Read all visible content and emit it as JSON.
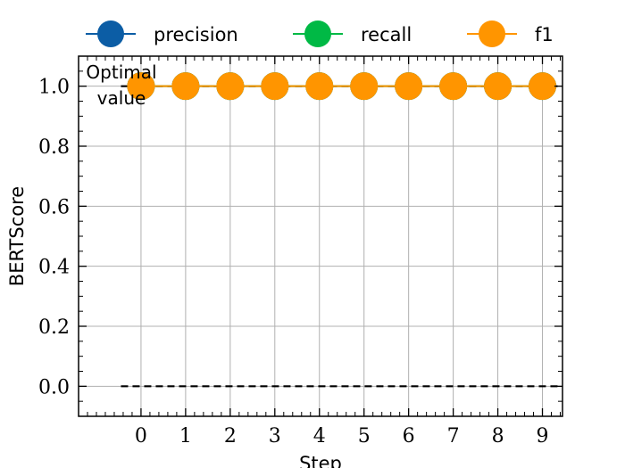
{
  "chart_data": {
    "type": "line",
    "xlabel": "Step",
    "ylabel": "BERTScore",
    "x": [
      0,
      1,
      2,
      3,
      4,
      5,
      6,
      7,
      8,
      9
    ],
    "xticks": [
      "0",
      "1",
      "2",
      "3",
      "4",
      "5",
      "6",
      "7",
      "8",
      "9"
    ],
    "yticks": [
      "0.0",
      "0.2",
      "0.4",
      "0.6",
      "0.8",
      "1.0"
    ],
    "xlim": [
      -1.4,
      9.45
    ],
    "ylim": [
      -0.1,
      1.1
    ],
    "grid": true,
    "legend_position": "top",
    "series": [
      {
        "name": "precision",
        "color": "#0c5da5",
        "values": [
          1.0,
          1.0,
          1.0,
          1.0,
          1.0,
          1.0,
          1.0,
          1.0,
          1.0,
          1.0
        ]
      },
      {
        "name": "recall",
        "color": "#00b945",
        "values": [
          1.0,
          1.0,
          1.0,
          1.0,
          1.0,
          1.0,
          1.0,
          1.0,
          1.0,
          1.0
        ]
      },
      {
        "name": "f1",
        "color": "#ff9500",
        "values": [
          1.0,
          1.0,
          1.0,
          1.0,
          1.0,
          1.0,
          1.0,
          1.0,
          1.0,
          1.0
        ]
      }
    ],
    "reference_lines": [
      {
        "y": 1.0,
        "style": "dashed",
        "color": "#000000"
      },
      {
        "y": 0.0,
        "style": "dashed",
        "color": "#000000"
      }
    ],
    "annotation": {
      "line1": "Optimal",
      "line2": "value"
    }
  }
}
